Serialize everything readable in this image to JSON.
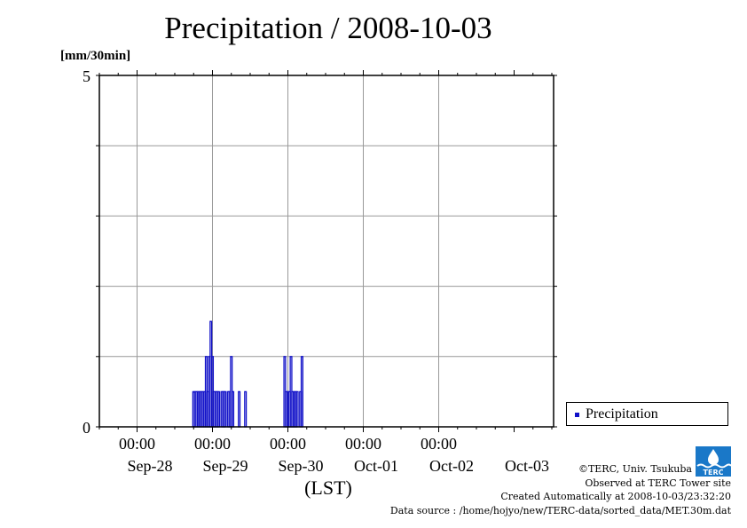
{
  "header": {
    "title": "Precipitation / 2008-10-03"
  },
  "chart_data": {
    "type": "bar",
    "title": "Precipitation / 2008-10-03",
    "ylabel": "[mm/30min]",
    "xlabel": "(LST)",
    "ylim": [
      0,
      5
    ],
    "yticks": [
      "0",
      "5"
    ],
    "x_time_labels": [
      "00:00",
      "00:00",
      "00:00",
      "00:00",
      "00:00"
    ],
    "x_date_labels": [
      "Sep-28",
      "Sep-29",
      "Sep-30",
      "Oct-01",
      "Oct-02",
      "Oct-03"
    ],
    "grid": true,
    "legend_position": "right",
    "color": "#1010c8",
    "series": [
      {
        "name": "Precipitation",
        "points": [
          {
            "x": "2008-09-28 18:00",
            "y": 0.5
          },
          {
            "x": "2008-09-28 18:30",
            "y": 0.5
          },
          {
            "x": "2008-09-28 19:00",
            "y": 0.5
          },
          {
            "x": "2008-09-28 19:30",
            "y": 0.5
          },
          {
            "x": "2008-09-28 20:00",
            "y": 0.5
          },
          {
            "x": "2008-09-28 20:30",
            "y": 0.5
          },
          {
            "x": "2008-09-28 21:00",
            "y": 0.5
          },
          {
            "x": "2008-09-28 21:30",
            "y": 0.5
          },
          {
            "x": "2008-09-28 22:00",
            "y": 1.0
          },
          {
            "x": "2008-09-28 22:30",
            "y": 0.5
          },
          {
            "x": "2008-09-28 23:00",
            "y": 1.0
          },
          {
            "x": "2008-09-28 23:30",
            "y": 1.5
          },
          {
            "x": "2008-09-29 00:00",
            "y": 1.0
          },
          {
            "x": "2008-09-29 00:30",
            "y": 0.5
          },
          {
            "x": "2008-09-29 01:00",
            "y": 0.5
          },
          {
            "x": "2008-09-29 01:30",
            "y": 0.5
          },
          {
            "x": "2008-09-29 02:00",
            "y": 0.5
          },
          {
            "x": "2008-09-29 03:00",
            "y": 0.5
          },
          {
            "x": "2008-09-29 03:30",
            "y": 0.5
          },
          {
            "x": "2008-09-29 04:00",
            "y": 0.5
          },
          {
            "x": "2008-09-29 05:00",
            "y": 0.5
          },
          {
            "x": "2008-09-29 05:30",
            "y": 0.5
          },
          {
            "x": "2008-09-29 06:00",
            "y": 1.0
          },
          {
            "x": "2008-09-29 06:30",
            "y": 0.5
          },
          {
            "x": "2008-09-29 08:30",
            "y": 0.5
          },
          {
            "x": "2008-09-29 10:30",
            "y": 0.5
          },
          {
            "x": "2008-09-29 23:00",
            "y": 1.0
          },
          {
            "x": "2008-09-29 23:30",
            "y": 0.5
          },
          {
            "x": "2008-09-30 00:00",
            "y": 0.5
          },
          {
            "x": "2008-09-30 00:30",
            "y": 0.5
          },
          {
            "x": "2008-09-30 01:00",
            "y": 1.0
          },
          {
            "x": "2008-09-30 01:30",
            "y": 0.5
          },
          {
            "x": "2008-09-30 02:00",
            "y": 0.5
          },
          {
            "x": "2008-09-30 02:30",
            "y": 0.5
          },
          {
            "x": "2008-09-30 03:00",
            "y": 0.5
          },
          {
            "x": "2008-09-30 04:00",
            "y": 0.5
          },
          {
            "x": "2008-09-30 04:30",
            "y": 1.0
          }
        ]
      }
    ]
  },
  "legend": {
    "label": "Precipitation"
  },
  "credits": {
    "copyright": "©TERC, Univ. Tsukuba",
    "site": "Observed at TERC Tower site",
    "created": "Created Automatically at 2008-10-03/23:32:20",
    "source": "Data source : /home/hojyo/new/TERC-data/sorted_data/MET.30m.dat"
  },
  "logo": {
    "text": "TERC"
  }
}
